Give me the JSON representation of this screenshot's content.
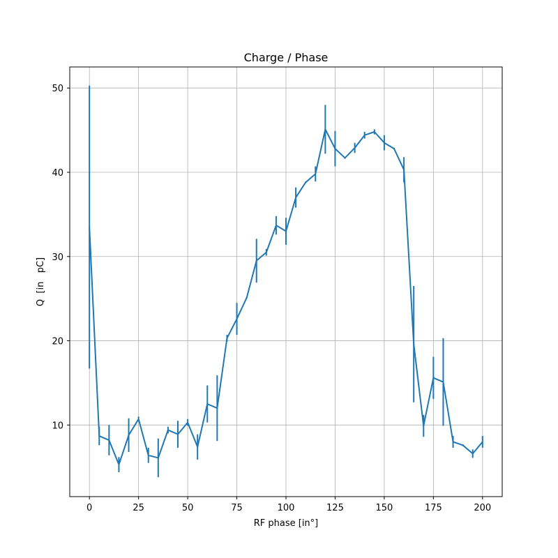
{
  "chart_data": {
    "type": "line",
    "title": "Charge / Phase",
    "xlabel": "RF phase [in°]",
    "ylabel": "Q  [in   pC]",
    "xlim": [
      -10,
      210
    ],
    "ylim": [
      1.5,
      52.5
    ],
    "xticks": [
      0,
      25,
      50,
      75,
      100,
      125,
      150,
      175,
      200
    ],
    "yticks": [
      10,
      20,
      30,
      40,
      50
    ],
    "grid": true,
    "line_color": "#1f77b4",
    "series": [
      {
        "x": [
          0,
          5,
          10,
          15,
          20,
          25,
          30,
          35,
          40,
          45,
          50,
          55,
          60,
          65,
          70,
          75,
          80,
          85,
          90,
          95,
          100,
          105,
          110,
          115,
          120,
          125,
          130,
          135,
          140,
          145,
          150,
          155,
          160,
          165,
          170,
          175,
          180,
          185,
          190,
          195,
          200
        ],
        "y": [
          33.5,
          8.7,
          8.2,
          5.3,
          8.8,
          10.7,
          6.4,
          6.1,
          9.4,
          8.9,
          10.3,
          7.4,
          12.5,
          12.0,
          20.3,
          22.6,
          25.1,
          29.5,
          30.5,
          33.7,
          33.0,
          37.0,
          38.8,
          39.8,
          45.1,
          42.8,
          41.7,
          42.9,
          44.4,
          44.8,
          43.5,
          42.8,
          40.3,
          19.6,
          9.9,
          15.6,
          15.1,
          8.0,
          7.6,
          6.6,
          8.0
        ],
        "yerr": [
          16.8,
          1.1,
          1.8,
          0.9,
          2.0,
          0.3,
          0.9,
          2.3,
          0.4,
          1.6,
          0.4,
          1.5,
          2.2,
          3.9,
          0.4,
          1.9,
          0.1,
          2.6,
          0.4,
          1.1,
          1.6,
          1.2,
          0.1,
          0.9,
          2.9,
          2.1,
          0.1,
          0.6,
          0.4,
          0.3,
          0.9,
          0.1,
          1.5,
          6.9,
          1.3,
          2.5,
          5.2,
          0.7,
          0.1,
          0.5,
          0.7
        ]
      }
    ]
  }
}
